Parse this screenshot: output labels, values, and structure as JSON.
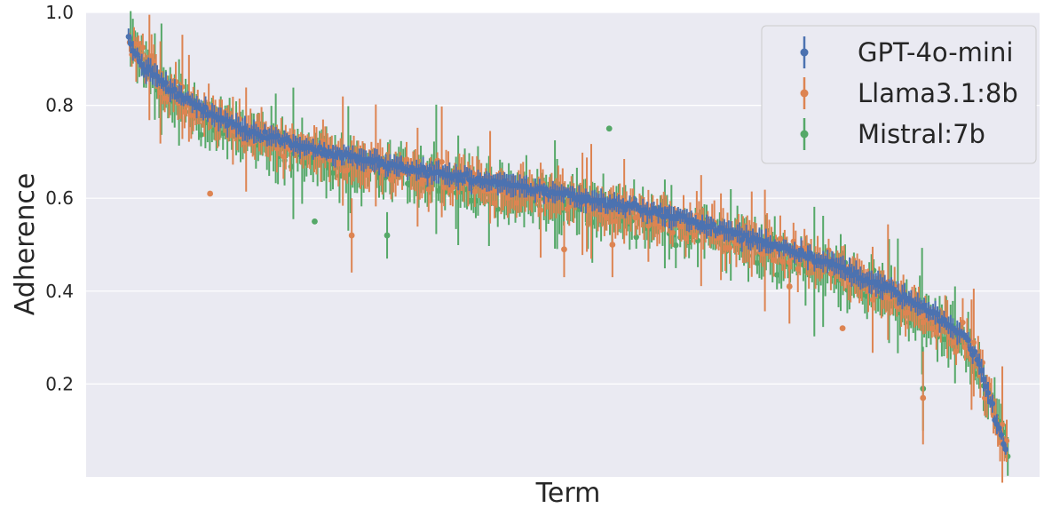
{
  "chart_data": {
    "type": "scatter",
    "title": "",
    "xlabel": "Term",
    "ylabel": "Adherence",
    "ylim": [
      0.0,
      1.0
    ],
    "yticks": [
      {
        "value": 0.2,
        "label": "0.2"
      },
      {
        "value": 0.4,
        "label": "0.4"
      },
      {
        "value": 0.6,
        "label": "0.6"
      },
      {
        "value": 0.8,
        "label": "0.8"
      },
      {
        "value": 1.0,
        "label": "1.0"
      }
    ],
    "grid": true,
    "legend_position": "top-right",
    "n_terms": 400,
    "series": [
      {
        "name": "GPT-4o-mini",
        "color": "#4c72b0",
        "knots": [
          [
            0,
            0.94
          ],
          [
            10,
            0.88
          ],
          [
            25,
            0.84
          ],
          [
            50,
            0.78
          ],
          [
            80,
            0.74
          ],
          [
            120,
            0.7
          ],
          [
            180,
            0.66
          ],
          [
            250,
            0.62
          ],
          [
            300,
            0.59
          ],
          [
            340,
            0.56
          ],
          [
            380,
            0.52
          ],
          [
            420,
            0.48
          ],
          [
            450,
            0.44
          ],
          [
            470,
            0.41
          ],
          [
            490,
            0.37
          ],
          [
            505,
            0.34
          ],
          [
            520,
            0.3
          ],
          [
            528,
            0.25
          ],
          [
            535,
            0.17
          ],
          [
            540,
            0.11
          ],
          [
            545,
            0.06
          ]
        ],
        "jitter": 0.012,
        "err": 0.018,
        "outliers": []
      },
      {
        "name": "Llama3.1:8b",
        "color": "#dd8452",
        "knots": [
          [
            0,
            0.95
          ],
          [
            10,
            0.89
          ],
          [
            25,
            0.83
          ],
          [
            50,
            0.77
          ],
          [
            80,
            0.73
          ],
          [
            120,
            0.69
          ],
          [
            180,
            0.65
          ],
          [
            250,
            0.61
          ],
          [
            300,
            0.58
          ],
          [
            340,
            0.55
          ],
          [
            380,
            0.51
          ],
          [
            420,
            0.47
          ],
          [
            450,
            0.43
          ],
          [
            470,
            0.4
          ],
          [
            490,
            0.36
          ],
          [
            505,
            0.33
          ],
          [
            520,
            0.29
          ],
          [
            528,
            0.24
          ],
          [
            535,
            0.16
          ],
          [
            540,
            0.1
          ],
          [
            545,
            0.07
          ]
        ],
        "jitter": 0.045,
        "err": 0.035,
        "outliers": [
          [
            50,
            0.61,
            0.0
          ],
          [
            138,
            0.52,
            0.08
          ],
          [
            270,
            0.49,
            0.06
          ],
          [
            300,
            0.5,
            0.07
          ],
          [
            410,
            0.41,
            0.08
          ],
          [
            443,
            0.32,
            0.0
          ],
          [
            493,
            0.17,
            0.1
          ]
        ]
      },
      {
        "name": "Mistral:7b",
        "color": "#55a868",
        "knots": [
          [
            0,
            0.94
          ],
          [
            10,
            0.87
          ],
          [
            25,
            0.82
          ],
          [
            50,
            0.76
          ],
          [
            80,
            0.72
          ],
          [
            120,
            0.68
          ],
          [
            180,
            0.64
          ],
          [
            250,
            0.6
          ],
          [
            300,
            0.57
          ],
          [
            340,
            0.54
          ],
          [
            380,
            0.5
          ],
          [
            420,
            0.46
          ],
          [
            450,
            0.42
          ],
          [
            470,
            0.39
          ],
          [
            490,
            0.35
          ],
          [
            505,
            0.32
          ],
          [
            520,
            0.28
          ],
          [
            528,
            0.23
          ],
          [
            535,
            0.15
          ],
          [
            540,
            0.11
          ],
          [
            545,
            0.07
          ]
        ],
        "jitter": 0.05,
        "err": 0.04,
        "outliers": [
          [
            298,
            0.75,
            0.0
          ],
          [
            115,
            0.55,
            0.0
          ],
          [
            160,
            0.52,
            0.05
          ],
          [
            493,
            0.19,
            0.09
          ]
        ]
      }
    ]
  }
}
